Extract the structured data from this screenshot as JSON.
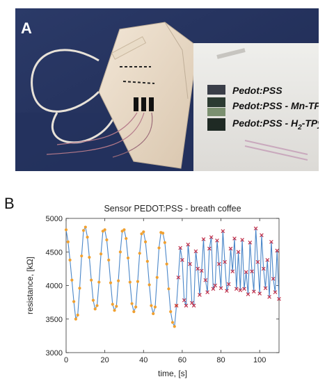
{
  "panel_a": {
    "label": "A",
    "inset_labels": [
      "Pedot:PSS",
      "Pedot:PSS - Mn-TPyP",
      "Pedot:PSS - H",
      "2",
      "-TPyP"
    ]
  },
  "panel_b": {
    "label": "B"
  },
  "chart_data": {
    "type": "line",
    "title": "Sensor PEDOT:PSS - breath coffee",
    "xlabel": "time, [s]",
    "ylabel": "resistance, [kΩ]",
    "xlim": [
      0,
      110
    ],
    "ylim": [
      3000,
      5000
    ],
    "xticks": [
      0,
      20,
      40,
      60,
      80,
      100
    ],
    "yticks": [
      3000,
      3500,
      4000,
      4500,
      5000
    ],
    "grid": false,
    "series": [
      {
        "marker_color": "#f0a030",
        "marker": "dot",
        "x": [
          0,
          1,
          2,
          3,
          4,
          5,
          6,
          7,
          8,
          9,
          10,
          11,
          12,
          13,
          14,
          15,
          16,
          17,
          18,
          19,
          20,
          21,
          22,
          23,
          24,
          25,
          26,
          27,
          28,
          29,
          30,
          31,
          32,
          33,
          34,
          35,
          36,
          37,
          38,
          39,
          40,
          41,
          42,
          43,
          44,
          45,
          46,
          47,
          48,
          49,
          50,
          51,
          52,
          53,
          54,
          55,
          56,
          57
        ],
        "y": [
          4830,
          4650,
          4380,
          4080,
          3760,
          3500,
          3560,
          3960,
          4440,
          4820,
          4870,
          4720,
          4420,
          4080,
          3780,
          3650,
          3700,
          4050,
          4470,
          4810,
          4830,
          4680,
          4380,
          4040,
          3720,
          3630,
          3690,
          4070,
          4500,
          4810,
          4830,
          4700,
          4410,
          4050,
          3730,
          3610,
          3680,
          4060,
          4480,
          4770,
          4800,
          4650,
          4360,
          4010,
          3700,
          3580,
          3680,
          4120,
          4560,
          4790,
          4780,
          4640,
          4320,
          3950,
          3610,
          3450,
          3390,
          3700
        ]
      },
      {
        "marker_color": "#c0304a",
        "marker": "x",
        "x": [
          57,
          58,
          59,
          60,
          61,
          62,
          63,
          64,
          65,
          66,
          67,
          68,
          69,
          70,
          71,
          72,
          73,
          74,
          75,
          76,
          77,
          78,
          79,
          80,
          81,
          82,
          83,
          84,
          85,
          86,
          87,
          88,
          89,
          90,
          91,
          92,
          93,
          94,
          95,
          96,
          97,
          98,
          99,
          100,
          101,
          102,
          103,
          104,
          105,
          106,
          107,
          108,
          109,
          110
        ],
        "y": [
          3700,
          4120,
          4560,
          4380,
          3780,
          3700,
          4610,
          4320,
          3740,
          3700,
          4510,
          4250,
          3860,
          4220,
          4690,
          4080,
          3900,
          4550,
          4720,
          3950,
          4000,
          4670,
          4320,
          3960,
          4810,
          4350,
          3920,
          4020,
          4550,
          4210,
          4700,
          3950,
          4500,
          3930,
          4680,
          3950,
          4200,
          3870,
          4640,
          4210,
          3910,
          4850,
          4350,
          3880,
          4750,
          4250,
          3960,
          4380,
          3830,
          4650,
          4100,
          3900,
          4520,
          3800
        ]
      }
    ]
  }
}
